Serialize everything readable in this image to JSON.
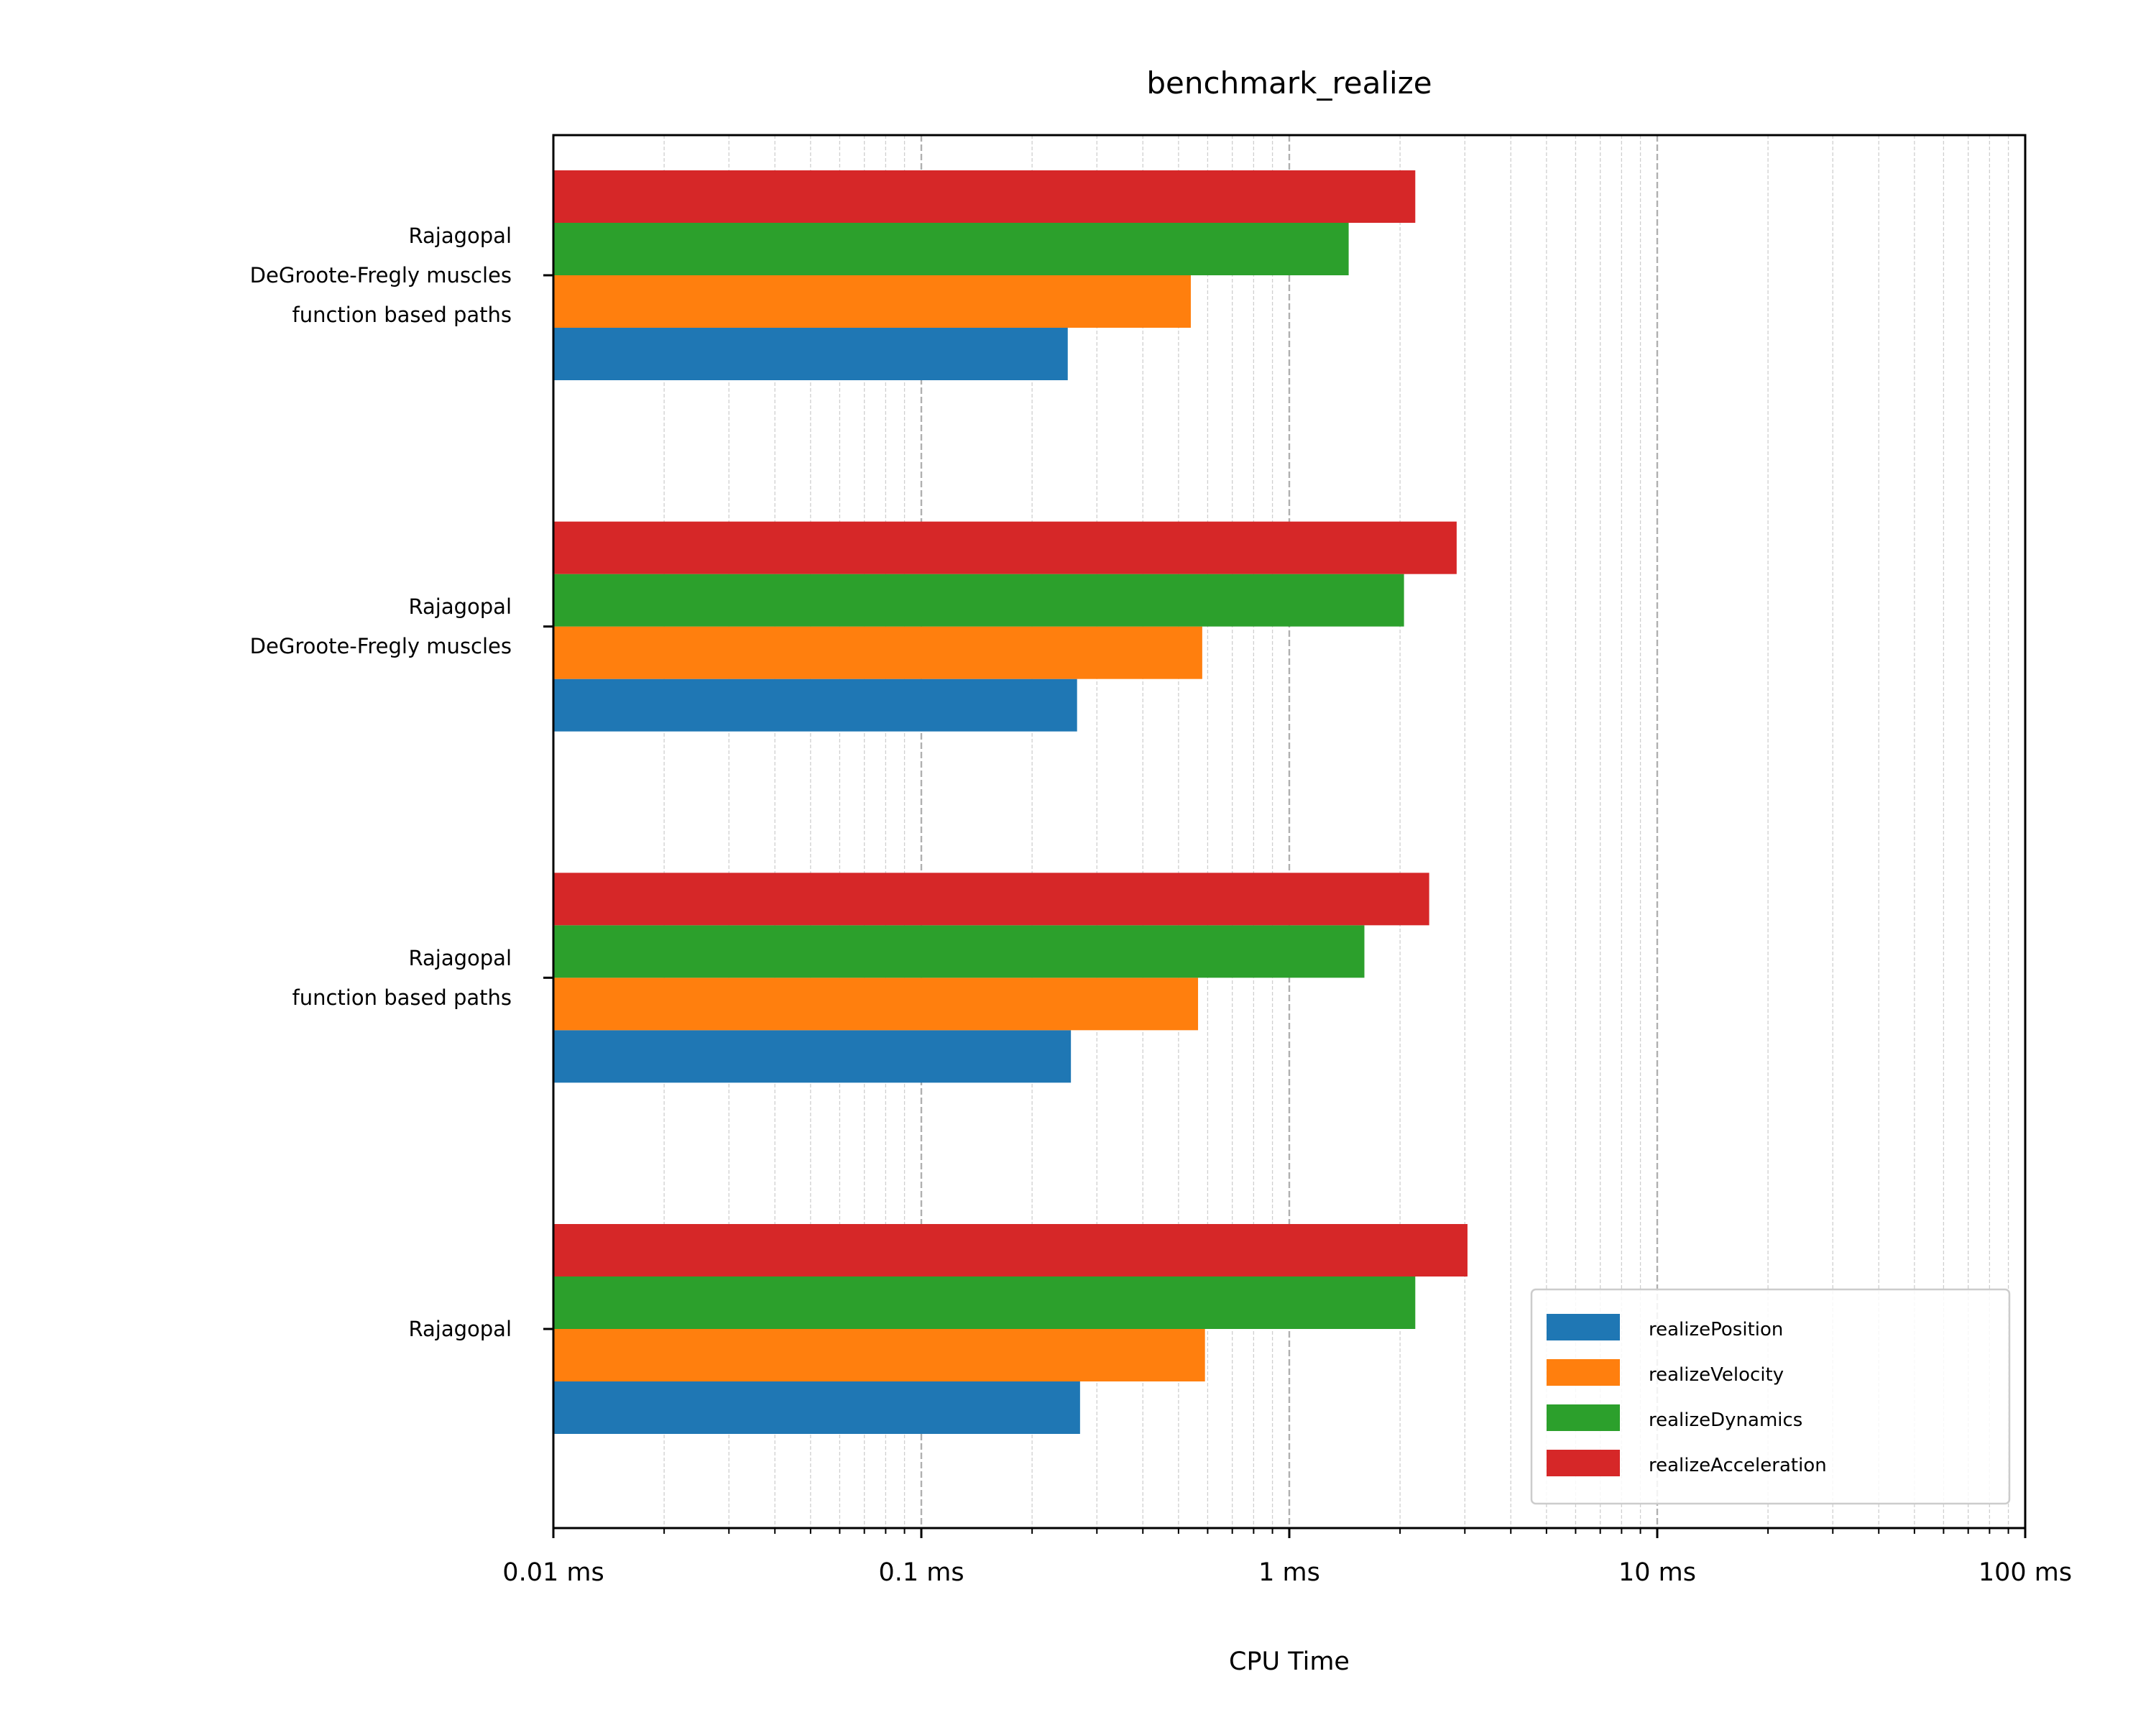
{
  "chart_data": {
    "type": "bar",
    "orientation": "horizontal",
    "title": "benchmark_realize",
    "xlabel": "CPU Time",
    "ylabel": "",
    "xscale": "log",
    "xlim": [
      0.01,
      100
    ],
    "x_unit": "ms",
    "x_ticks": [
      {
        "value": 0.01,
        "label": "0.01 ms"
      },
      {
        "value": 0.1,
        "label": "0.1 ms"
      },
      {
        "value": 1,
        "label": "1 ms"
      },
      {
        "value": 10,
        "label": "10 ms"
      },
      {
        "value": 100,
        "label": "100 ms"
      }
    ],
    "grid": "x major and minor, dashed",
    "legend_position": "lower-right",
    "categories": [
      [
        "Rajagopal"
      ],
      [
        "Rajagopal",
        "function based paths"
      ],
      [
        "Rajagopal",
        "DeGroote-Fregly muscles"
      ],
      [
        "Rajagopal",
        "DeGroote-Fregly muscles",
        "function based paths"
      ]
    ],
    "series": [
      {
        "name": "realizePosition",
        "color": "#1f77b4",
        "values": [
          0.27,
          0.255,
          0.265,
          0.25
        ]
      },
      {
        "name": "realizeVelocity",
        "color": "#ff7f0e",
        "values": [
          0.59,
          0.565,
          0.58,
          0.54
        ]
      },
      {
        "name": "realizeDynamics",
        "color": "#2ca02c",
        "values": [
          2.2,
          1.6,
          2.05,
          1.45
        ]
      },
      {
        "name": "realizeAcceleration",
        "color": "#d62728",
        "values": [
          3.05,
          2.4,
          2.85,
          2.2
        ]
      }
    ]
  }
}
